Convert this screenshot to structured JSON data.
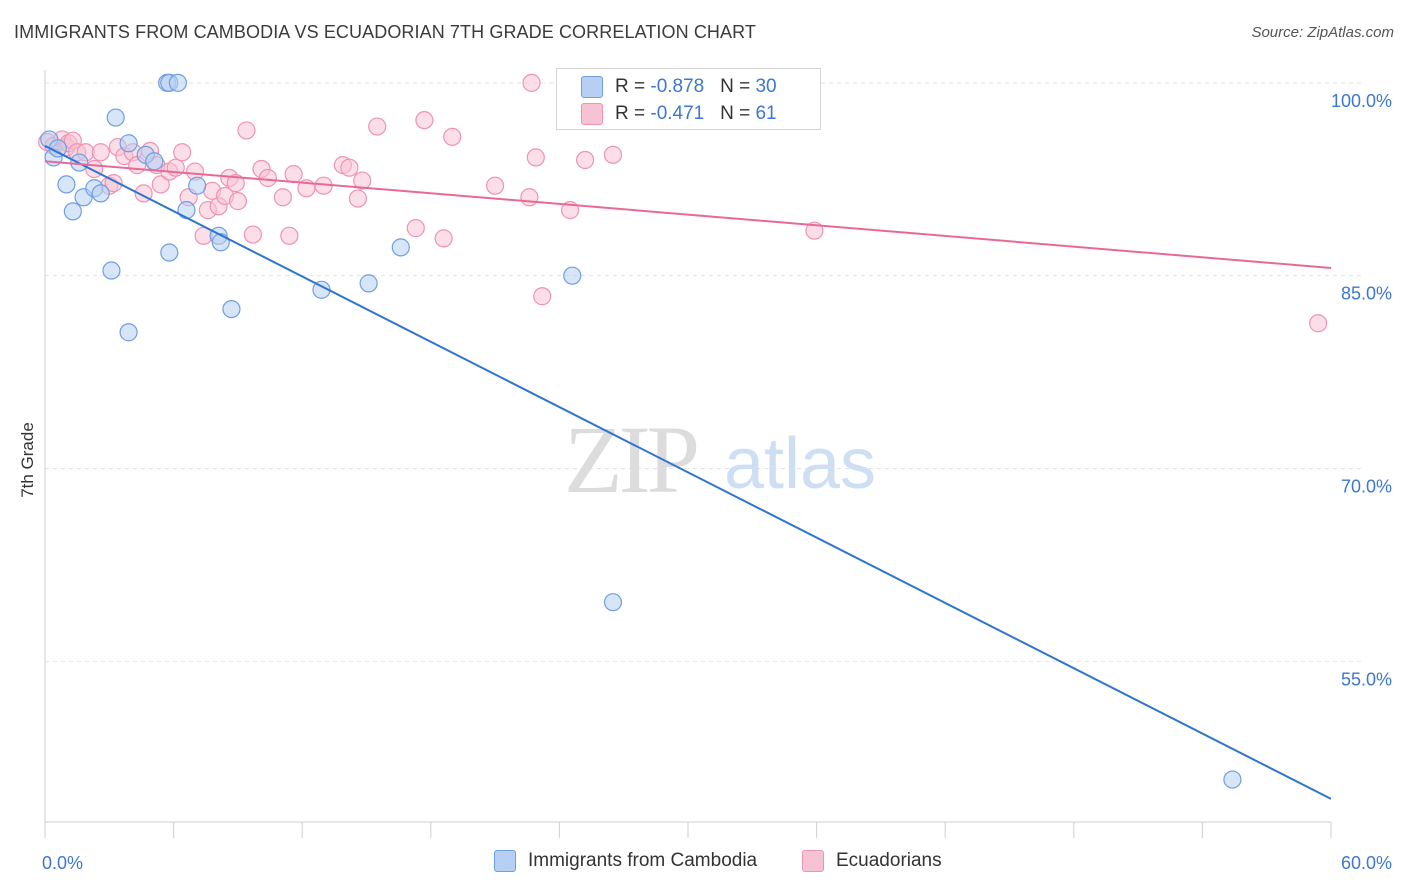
{
  "title": "IMMIGRANTS FROM CAMBODIA VS ECUADORIAN 7TH GRADE CORRELATION CHART",
  "source": "Source: ZipAtlas.com",
  "watermark": {
    "zip": "ZIP",
    "atlas": "atlas"
  },
  "legend_top": {
    "rows": [
      {
        "r_label": "R = ",
        "r_value": "-0.878",
        "n_label": "N = ",
        "n_value": "30"
      },
      {
        "r_label": "R = ",
        "r_value": "-0.471",
        "n_label": "N = ",
        "n_value": "61"
      }
    ]
  },
  "colors": {
    "blue_fill": "#b7cff3",
    "blue_stroke": "#6f9fe0",
    "blue_line": "#2f74d0",
    "pink_fill": "#f7c2d4",
    "pink_stroke": "#ee93b3",
    "pink_line": "#e8689a",
    "axis_text": "#3d77d0",
    "grid": "#e2e2e2"
  },
  "chart_data": {
    "type": "scatter",
    "title": "IMMIGRANTS FROM CAMBODIA VS ECUADORIAN 7TH GRADE CORRELATION CHART",
    "xlabel": "",
    "ylabel": "7th Grade",
    "xlim": [
      0,
      60
    ],
    "ylim": [
      42.5,
      101
    ],
    "x_ticks": [
      "0.0%",
      "60.0%"
    ],
    "y_ticks": [
      {
        "value": 100,
        "label": "100.0%"
      },
      {
        "value": 85,
        "label": "85.0%"
      },
      {
        "value": 70,
        "label": "70.0%"
      },
      {
        "value": 55,
        "label": "55.0%"
      }
    ],
    "grid": true,
    "legend_position": "bottom",
    "series": [
      {
        "name": "Immigrants from Cambodia",
        "color": "blue",
        "r": -0.878,
        "n": 30,
        "trend": {
          "x": [
            0,
            60
          ],
          "y": [
            95.1,
            44.3
          ]
        },
        "points": [
          [
            0.2,
            95.6
          ],
          [
            0.4,
            94.2
          ],
          [
            0.6,
            94.9
          ],
          [
            1.0,
            92.1
          ],
          [
            1.3,
            90.0
          ],
          [
            1.6,
            93.8
          ],
          [
            1.8,
            91.1
          ],
          [
            2.3,
            91.8
          ],
          [
            2.6,
            91.4
          ],
          [
            3.1,
            85.4
          ],
          [
            3.3,
            97.3
          ],
          [
            3.9,
            80.6
          ],
          [
            3.9,
            95.3
          ],
          [
            4.7,
            94.4
          ],
          [
            5.1,
            93.9
          ],
          [
            5.7,
            100.0
          ],
          [
            5.8,
            100.0
          ],
          [
            5.8,
            86.8
          ],
          [
            6.2,
            100.0
          ],
          [
            6.6,
            90.1
          ],
          [
            7.1,
            92.0
          ],
          [
            8.1,
            88.1
          ],
          [
            8.2,
            87.6
          ],
          [
            8.7,
            82.4
          ],
          [
            12.9,
            83.9
          ],
          [
            15.1,
            84.4
          ],
          [
            16.6,
            87.2
          ],
          [
            24.6,
            85.0
          ],
          [
            26.5,
            59.6
          ],
          [
            55.4,
            45.8
          ]
        ]
      },
      {
        "name": "Ecuadorians",
        "color": "pink",
        "r": -0.471,
        "n": 61,
        "trend": {
          "x": [
            0,
            60
          ],
          "y": [
            93.9,
            85.6
          ]
        },
        "points": [
          [
            0.1,
            95.4
          ],
          [
            0.4,
            95.1
          ],
          [
            0.8,
            95.6
          ],
          [
            1.0,
            95.0
          ],
          [
            1.1,
            95.3
          ],
          [
            1.3,
            95.5
          ],
          [
            1.5,
            94.6
          ],
          [
            1.9,
            94.6
          ],
          [
            2.3,
            93.3
          ],
          [
            2.6,
            94.6
          ],
          [
            3.0,
            92.0
          ],
          [
            3.2,
            92.2
          ],
          [
            3.4,
            95.0
          ],
          [
            3.7,
            94.3
          ],
          [
            4.1,
            94.6
          ],
          [
            4.3,
            93.6
          ],
          [
            4.6,
            91.4
          ],
          [
            4.9,
            94.7
          ],
          [
            5.2,
            93.6
          ],
          [
            5.4,
            92.1
          ],
          [
            5.8,
            93.1
          ],
          [
            6.1,
            93.4
          ],
          [
            6.4,
            94.6
          ],
          [
            6.7,
            91.1
          ],
          [
            7.0,
            93.1
          ],
          [
            7.4,
            88.1
          ],
          [
            7.6,
            90.1
          ],
          [
            7.8,
            91.6
          ],
          [
            8.1,
            90.4
          ],
          [
            8.4,
            91.2
          ],
          [
            8.6,
            92.6
          ],
          [
            8.9,
            92.2
          ],
          [
            9.0,
            90.8
          ],
          [
            9.4,
            96.3
          ],
          [
            9.7,
            88.2
          ],
          [
            10.1,
            93.3
          ],
          [
            10.4,
            92.6
          ],
          [
            11.1,
            91.1
          ],
          [
            11.4,
            88.1
          ],
          [
            11.6,
            92.9
          ],
          [
            12.2,
            91.8
          ],
          [
            13.0,
            92.0
          ],
          [
            13.9,
            93.6
          ],
          [
            14.2,
            93.4
          ],
          [
            14.6,
            91.0
          ],
          [
            14.8,
            92.4
          ],
          [
            15.5,
            96.6
          ],
          [
            17.3,
            88.7
          ],
          [
            17.7,
            97.1
          ],
          [
            18.6,
            87.9
          ],
          [
            19.0,
            95.8
          ],
          [
            21.0,
            92.0
          ],
          [
            22.6,
            91.1
          ],
          [
            22.7,
            100.0
          ],
          [
            22.9,
            94.2
          ],
          [
            23.2,
            83.4
          ],
          [
            24.5,
            90.1
          ],
          [
            25.2,
            94.0
          ],
          [
            26.5,
            94.4
          ],
          [
            35.9,
            88.5
          ],
          [
            59.4,
            81.3
          ]
        ]
      }
    ]
  },
  "bottom_legend": [
    {
      "label": "Immigrants from Cambodia"
    },
    {
      "label": "Ecuadorians"
    }
  ]
}
